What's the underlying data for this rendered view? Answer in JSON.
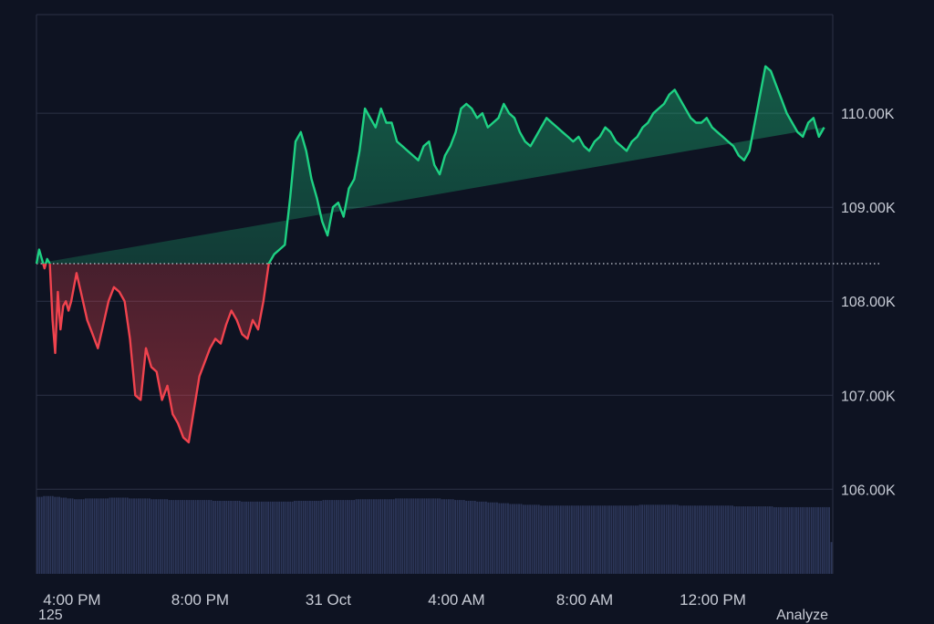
{
  "chart_data": {
    "type": "area",
    "baseline": 108400,
    "ylim": [
      105100,
      111050
    ],
    "y_ticks": [
      {
        "value": 106000,
        "label": "106.00K"
      },
      {
        "value": 107000,
        "label": "107.00K"
      },
      {
        "value": 108000,
        "label": "108.00K"
      },
      {
        "value": 109000,
        "label": "109.00K"
      },
      {
        "value": 110000,
        "label": "110.00K"
      }
    ],
    "x_ticks": [
      {
        "t": 0,
        "label": "4:00 PM"
      },
      {
        "t": 240,
        "label": "8:00 PM"
      },
      {
        "t": 480,
        "label": "31 Oct"
      },
      {
        "t": 720,
        "label": "4:00 AM"
      },
      {
        "t": 960,
        "label": "8:00 AM"
      },
      {
        "t": 1200,
        "label": "12:00 PM"
      }
    ],
    "t_range": [
      -5,
      1486
    ],
    "price": {
      "t": [
        -5,
        0,
        5,
        10,
        15,
        20,
        25,
        30,
        35,
        40,
        45,
        50,
        55,
        60,
        70,
        80,
        90,
        100,
        110,
        120,
        130,
        140,
        150,
        160,
        170,
        180,
        190,
        200,
        210,
        220,
        230,
        240,
        250,
        260,
        270,
        280,
        290,
        300,
        310,
        320,
        330,
        340,
        350,
        360,
        370,
        380,
        390,
        400,
        410,
        420,
        430,
        440,
        450,
        460,
        470,
        480,
        490,
        500,
        510,
        520,
        530,
        540,
        550,
        560,
        570,
        580,
        590,
        600,
        610,
        620,
        630,
        640,
        650,
        660,
        670,
        680,
        690,
        700,
        710,
        720,
        730,
        740,
        750,
        760,
        770,
        780,
        790,
        800,
        810,
        820,
        830,
        840,
        850,
        860,
        870,
        880,
        890,
        900,
        910,
        920,
        930,
        940,
        950,
        960,
        970,
        980,
        990,
        1000,
        1010,
        1020,
        1030,
        1040,
        1050,
        1060,
        1070,
        1080,
        1090,
        1100,
        1110,
        1120,
        1130,
        1140,
        1150,
        1160,
        1170,
        1180,
        1190,
        1200,
        1210,
        1220,
        1230,
        1240,
        1250,
        1260,
        1270,
        1280,
        1290,
        1300,
        1310,
        1320,
        1330,
        1340,
        1350,
        1360,
        1370,
        1380,
        1390,
        1400,
        1410,
        1420,
        1430,
        1440,
        1450,
        1460,
        1470,
        1480,
        1486
      ],
      "v": [
        108400,
        108550,
        108450,
        108350,
        108450,
        108400,
        107800,
        107450,
        108100,
        107700,
        107950,
        108000,
        107900,
        108000,
        108300,
        108050,
        107800,
        107650,
        107500,
        107750,
        108000,
        108150,
        108100,
        108000,
        107600,
        107000,
        106950,
        107500,
        107300,
        107250,
        106950,
        107100,
        106800,
        106700,
        106550,
        106500,
        106850,
        107200,
        107350,
        107500,
        107600,
        107550,
        107750,
        107900,
        107800,
        107650,
        107600,
        107800,
        107700,
        108000,
        108400,
        108500,
        108550,
        108600,
        109100,
        109700,
        109800,
        109600,
        109300,
        109100,
        108850,
        108700,
        109000,
        109050,
        108900,
        109200,
        109300,
        109600,
        110050,
        109950,
        109850,
        110050,
        109900,
        109900,
        109700,
        109650,
        109600,
        109550,
        109500,
        109650,
        109700,
        109450,
        109350,
        109550,
        109650,
        109800,
        110050,
        110100,
        110050,
        109950,
        110000,
        109850,
        109900,
        109950,
        110100,
        110000,
        109950,
        109800,
        109700,
        109650,
        109750,
        109850,
        109950,
        109900,
        109850,
        109800,
        109750,
        109700,
        109750,
        109650,
        109600,
        109700,
        109750,
        109850,
        109800,
        109700,
        109650,
        109600,
        109700,
        109750,
        109850,
        109900,
        110000,
        110050,
        110100,
        110200,
        110250,
        110150,
        110050,
        109950,
        109900,
        109900,
        109950,
        109850,
        109800,
        109750,
        109700,
        109650,
        109550,
        109500,
        109600,
        109900,
        110200,
        110500,
        110450,
        110300,
        110150,
        110000,
        109900,
        109800,
        109750,
        109900,
        109950,
        109750,
        109850
      ]
    },
    "volume_ylim": [
      0,
      100
    ],
    "volume": [
      97,
      97,
      97,
      98,
      98,
      98,
      98,
      98,
      97,
      97,
      97,
      96,
      96,
      96,
      95,
      95,
      95,
      94,
      94,
      94,
      94,
      94,
      95,
      95,
      95,
      95,
      95,
      95,
      95,
      95,
      95,
      95,
      95,
      96,
      96,
      96,
      96,
      96,
      96,
      96,
      96,
      96,
      95,
      95,
      95,
      95,
      95,
      95,
      95,
      95,
      95,
      95,
      94,
      94,
      94,
      94,
      94,
      94,
      94,
      94,
      93,
      93,
      93,
      93,
      93,
      93,
      93,
      93,
      93,
      93,
      93,
      93,
      93,
      93,
      93,
      93,
      93,
      93,
      93,
      93,
      92,
      92,
      92,
      92,
      92,
      92,
      92,
      92,
      92,
      92,
      92,
      92,
      92,
      91,
      91,
      91,
      91,
      91,
      91,
      91,
      91,
      91,
      91,
      91,
      91,
      91,
      91,
      91,
      91,
      91,
      91,
      91,
      91,
      91,
      91,
      91,
      91,
      92,
      92,
      92,
      92,
      92,
      92,
      92,
      92,
      92,
      92,
      92,
      92,
      92,
      93,
      93,
      93,
      93,
      93,
      93,
      93,
      93,
      93,
      93,
      93,
      93,
      93,
      93,
      93,
      94,
      94,
      94,
      94,
      94,
      94,
      94,
      94,
      94,
      94,
      94,
      94,
      94,
      94,
      94,
      94,
      94,
      94,
      95,
      95,
      95,
      95,
      95,
      95,
      95,
      95,
      95,
      95,
      95,
      95,
      95,
      95,
      95,
      95,
      95,
      95,
      95,
      95,
      95,
      94,
      94,
      94,
      94,
      94,
      94,
      93,
      93,
      93,
      93,
      93,
      92,
      92,
      92,
      92,
      92,
      91,
      91,
      91,
      91,
      91,
      90,
      90,
      90,
      90,
      90,
      89,
      89,
      89,
      89,
      89,
      88,
      88,
      88,
      88,
      88,
      88,
      87,
      87,
      87,
      87,
      87,
      87,
      87,
      87,
      86,
      86,
      86,
      86,
      86,
      86,
      86,
      86,
      86,
      86,
      86,
      86,
      86,
      86,
      86,
      86,
      86,
      86,
      86,
      86,
      86,
      86,
      86,
      86,
      86,
      86,
      86,
      86,
      86,
      86,
      86,
      86,
      86,
      86,
      86,
      86,
      86,
      86,
      86,
      86,
      86,
      86,
      86,
      86,
      86,
      87,
      87,
      87,
      87,
      87,
      87,
      87,
      87,
      87,
      87,
      87,
      87,
      87,
      87,
      87,
      87,
      87,
      87,
      86,
      86,
      86,
      86,
      86,
      86,
      86,
      86,
      86,
      86,
      86,
      86,
      86,
      86,
      86,
      86,
      86,
      86,
      86,
      86,
      86,
      86,
      86,
      86,
      86,
      85,
      85,
      85,
      85,
      85,
      85,
      85,
      85,
      85,
      85,
      85,
      85,
      85,
      85,
      85,
      85,
      85,
      85,
      84,
      84,
      84,
      84,
      84,
      84,
      84,
      84,
      84,
      84,
      84,
      84,
      84,
      84,
      84,
      84,
      84,
      84,
      84,
      84,
      84,
      84,
      84,
      84,
      84,
      84,
      40
    ],
    "colors": {
      "up": "#1ed183",
      "down": "#f0434e",
      "volume": "#2c3658",
      "grid": "#2c3246",
      "background": "#0e1322",
      "baseline": "#c8ccd6"
    }
  },
  "footer": {
    "left_text": "125",
    "right_text": "Analyze"
  }
}
